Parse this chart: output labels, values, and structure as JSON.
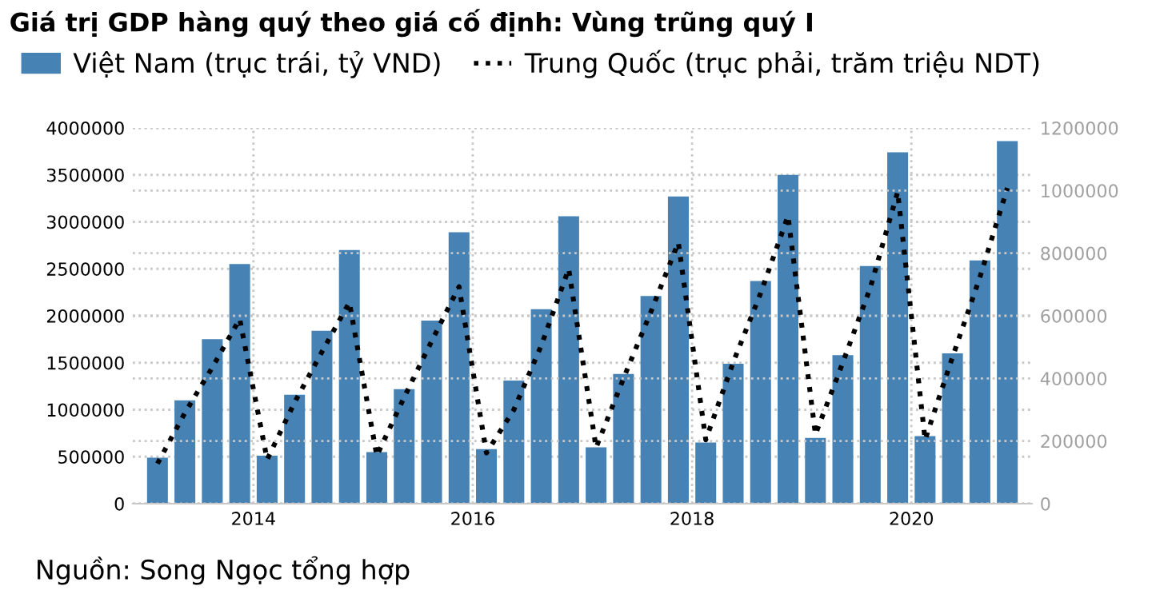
{
  "chart_data": {
    "type": "bar",
    "title": "Giá trị GDP hàng quý theo giá cố định: Vùng trũng quý I",
    "x": [
      2013.125,
      2013.375,
      2013.625,
      2013.875,
      2014.125,
      2014.375,
      2014.625,
      2014.875,
      2015.125,
      2015.375,
      2015.625,
      2015.875,
      2016.125,
      2016.375,
      2016.625,
      2016.875,
      2017.125,
      2017.375,
      2017.625,
      2017.875,
      2018.125,
      2018.375,
      2018.625,
      2018.875,
      2019.125,
      2019.375,
      2019.625,
      2019.875,
      2020.125,
      2020.375,
      2020.625,
      2020.875
    ],
    "series": [
      {
        "name": "Việt Nam (trục trái, tỷ VND)",
        "color": "#4682b4",
        "values": [
          490000,
          1100000,
          1750000,
          2550000,
          510000,
          1160000,
          1840000,
          2700000,
          550000,
          1220000,
          1950000,
          2890000,
          580000,
          1310000,
          2070000,
          3060000,
          600000,
          1380000,
          2210000,
          3270000,
          650000,
          1490000,
          2370000,
          3500000,
          700000,
          1580000,
          2530000,
          3740000,
          720000,
          1600000,
          2590000,
          3860000
        ]
      },
      {
        "name": "Trung Quốc (trục phải, trăm triệu NDT)",
        "color": "#000000",
        "type": "line",
        "axis": "y2",
        "line_style": "dotted",
        "values": [
          128000,
          290000,
          435000,
          590000,
          141000,
          323000,
          485000,
          643000,
          153000,
          340000,
          519000,
          693000,
          162000,
          300000,
          505000,
          750000,
          179000,
          400000,
          613000,
          834000,
          204000,
          451000,
          672000,
          919000,
          221000,
          451000,
          689000,
          996000,
          204000,
          468000,
          723000,
          1008000
        ]
      }
    ],
    "xlim": [
      2012.9,
      2021.1
    ],
    "xticks": [
      2014,
      2016,
      2018,
      2020
    ],
    "ylim": [
      0,
      4000000
    ],
    "yticks": [
      0,
      500000,
      1000000,
      1500000,
      2000000,
      2500000,
      3000000,
      3500000,
      4000000
    ],
    "y2lim": [
      0,
      1200000
    ],
    "y2ticks": [
      0,
      200000,
      400000,
      600000,
      800000,
      1000000,
      1200000
    ],
    "grid": true,
    "legend": "top",
    "marker": "none",
    "annotations": [
      "Nguồn: Song Ngọc tổng hợp"
    ]
  }
}
